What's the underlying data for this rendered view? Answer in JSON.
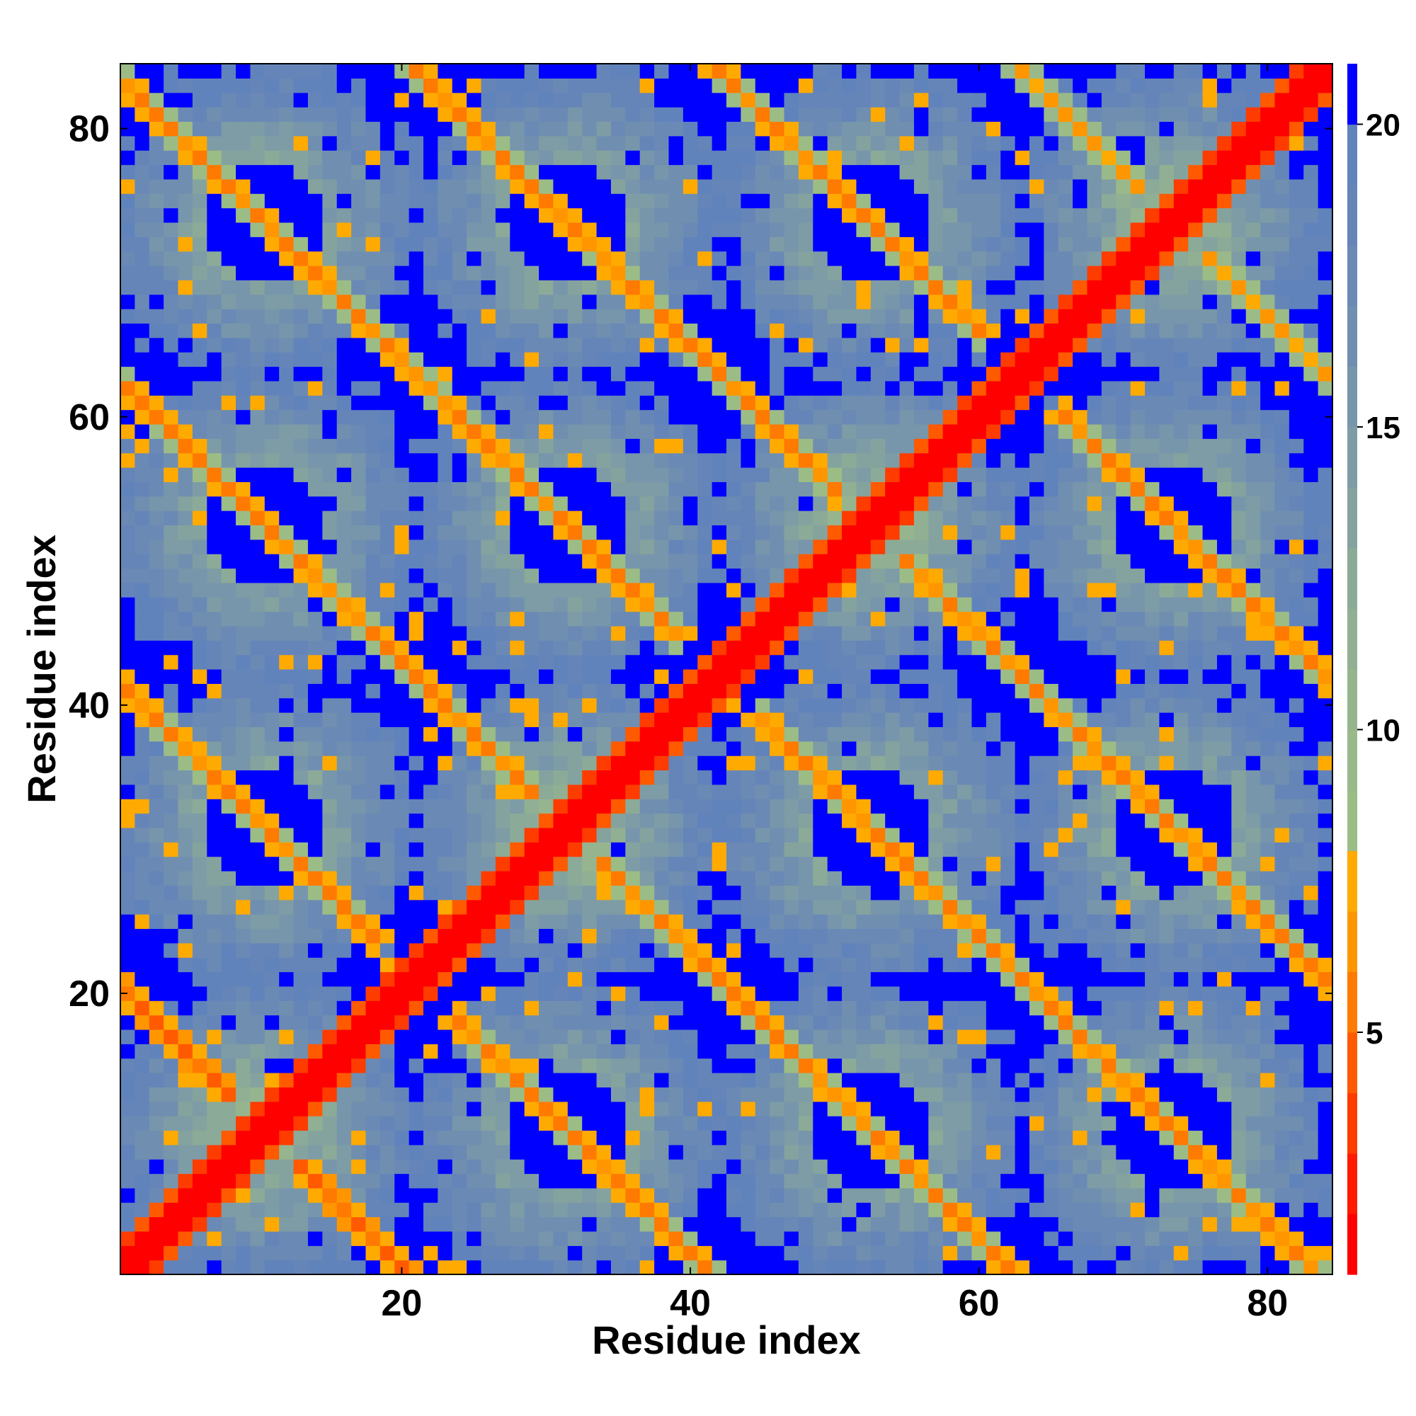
{
  "chart_data": {
    "type": "heatmap",
    "title": "",
    "xlabel": "Residue index",
    "ylabel": "Residue index",
    "n_residues": 84,
    "xlim": [
      0.5,
      84.5
    ],
    "ylim": [
      0.5,
      84.5
    ],
    "xticks": [
      20,
      40,
      60,
      80
    ],
    "yticks": [
      20,
      40,
      60,
      80
    ],
    "grid": false,
    "colorbar": {
      "placement": "right",
      "ticks": [
        5,
        10,
        15,
        20
      ],
      "range": [
        1,
        21
      ],
      "levels": [
        {
          "max": 2,
          "color": "#ff0000"
        },
        {
          "max": 3,
          "color": "#ff1a00"
        },
        {
          "max": 4,
          "color": "#ff3c00"
        },
        {
          "max": 5,
          "color": "#ff5a00"
        },
        {
          "max": 6,
          "color": "#ff7a00"
        },
        {
          "max": 7,
          "color": "#ff9600"
        },
        {
          "max": 8,
          "color": "#ffaa00"
        },
        {
          "max": 9,
          "color": "#9cbc86"
        },
        {
          "max": 10,
          "color": "#9ab98a"
        },
        {
          "max": 11,
          "color": "#96b58e"
        },
        {
          "max": 12,
          "color": "#91b093"
        },
        {
          "max": 13,
          "color": "#8caa98"
        },
        {
          "max": 14,
          "color": "#85a39e"
        },
        {
          "max": 15,
          "color": "#7e9ca5"
        },
        {
          "max": 16,
          "color": "#7796ab"
        },
        {
          "max": 17,
          "color": "#708fb0"
        },
        {
          "max": 18,
          "color": "#6a89b5"
        },
        {
          "max": 19,
          "color": "#6585b8"
        },
        {
          "max": 20,
          "color": "#6183bb"
        },
        {
          "max": 21,
          "color": "#0000ff"
        }
      ]
    },
    "value_model": {
      "description": "Contact distance map: symmetric matrix, diagonal ~0, off-diagonal bands at cross-strands, saturated blue clusters > 20",
      "diagonal_value": 0.5,
      "antidiagonal_bands": [
        {
          "i_plus_j": 21,
          "value": 4
        },
        {
          "i_plus_j": 42,
          "value": 5
        },
        {
          "i_plus_j": 63,
          "value": 5
        },
        {
          "i_plus_j": 84,
          "value": 5
        },
        {
          "i_plus_j": 105,
          "value": 5
        },
        {
          "i_plus_j": 126,
          "value": 5
        },
        {
          "i_plus_j": 147,
          "value": 6
        }
      ],
      "far_clusters_period": 21,
      "far_value": 21.5
    }
  }
}
